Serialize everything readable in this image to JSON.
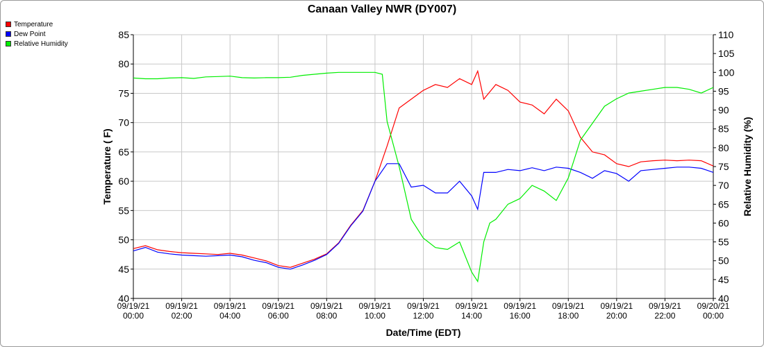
{
  "chart_data": {
    "type": "line",
    "title": "Canaan Valley NWR (DY007)",
    "xlabel": "Date/Time (EDT)",
    "ylabel": "Temperature ( F)",
    "y2label": "Relative Humidity (%)",
    "ylim": [
      40,
      85
    ],
    "y2lim": [
      40,
      110
    ],
    "xlim_hours": [
      0,
      24
    ],
    "yticks": [
      40,
      45,
      50,
      55,
      60,
      65,
      70,
      75,
      80,
      85
    ],
    "y2ticks": [
      40,
      45,
      50,
      55,
      60,
      65,
      70,
      75,
      80,
      85,
      90,
      95,
      100,
      105,
      110
    ],
    "xticks": [
      {
        "h": 0,
        "date": "09/19/21",
        "time": "00:00"
      },
      {
        "h": 2,
        "date": "09/19/21",
        "time": "02:00"
      },
      {
        "h": 4,
        "date": "09/19/21",
        "time": "04:00"
      },
      {
        "h": 6,
        "date": "09/19/21",
        "time": "06:00"
      },
      {
        "h": 8,
        "date": "09/19/21",
        "time": "08:00"
      },
      {
        "h": 10,
        "date": "09/19/21",
        "time": "10:00"
      },
      {
        "h": 12,
        "date": "09/19/21",
        "time": "12:00"
      },
      {
        "h": 14,
        "date": "09/19/21",
        "time": "14:00"
      },
      {
        "h": 16,
        "date": "09/19/21",
        "time": "16:00"
      },
      {
        "h": 18,
        "date": "09/19/21",
        "time": "18:00"
      },
      {
        "h": 20,
        "date": "09/19/21",
        "time": "20:00"
      },
      {
        "h": 22,
        "date": "09/19/21",
        "time": "22:00"
      },
      {
        "h": 24,
        "date": "09/20/21",
        "time": "00:00"
      }
    ],
    "grid": true,
    "legend_position": "top-left",
    "series": [
      {
        "name": "Temperature",
        "axis": "left",
        "color": "#ff0000",
        "x": [
          0,
          0.5,
          1,
          1.5,
          2,
          2.5,
          3,
          3.5,
          4,
          4.5,
          5,
          5.5,
          6,
          6.5,
          7,
          7.5,
          8,
          8.5,
          9,
          9.5,
          10,
          10.5,
          11,
          11.5,
          12,
          12.5,
          13,
          13.5,
          14,
          14.25,
          14.5,
          15,
          15.5,
          16,
          16.5,
          17,
          17.5,
          18,
          18.5,
          19,
          19.5,
          20,
          20.5,
          21,
          21.5,
          22,
          22.5,
          23,
          23.5,
          24
        ],
        "y": [
          48.5,
          49,
          48.3,
          48,
          47.8,
          47.7,
          47.6,
          47.5,
          47.7,
          47.4,
          46.9,
          46.4,
          45.6,
          45.3,
          46,
          46.7,
          47.6,
          49.5,
          52.5,
          55,
          60,
          66,
          72.5,
          74,
          75.5,
          76.5,
          76,
          77.5,
          76.5,
          78.8,
          74,
          76.5,
          75.5,
          73.5,
          73,
          71.5,
          74,
          72,
          67.5,
          65,
          64.5,
          63,
          62.5,
          63.3,
          63.5,
          63.6,
          63.5,
          63.6,
          63.5,
          62.6
        ]
      },
      {
        "name": "Dew Point",
        "axis": "left",
        "color": "#0000ff",
        "x": [
          0,
          0.5,
          1,
          1.5,
          2,
          2.5,
          3,
          3.5,
          4,
          4.5,
          5,
          5.5,
          6,
          6.5,
          7,
          7.5,
          8,
          8.5,
          9,
          9.5,
          10,
          10.5,
          11,
          11.5,
          12,
          12.5,
          13,
          13.5,
          14,
          14.25,
          14.5,
          15,
          15.5,
          16,
          16.5,
          17,
          17.5,
          18,
          18.5,
          19,
          19.5,
          20,
          20.5,
          21,
          21.5,
          22,
          22.5,
          23,
          23.5,
          24
        ],
        "y": [
          48.1,
          48.7,
          47.9,
          47.6,
          47.4,
          47.3,
          47.2,
          47.3,
          47.4,
          47.1,
          46.5,
          46.1,
          45.3,
          45,
          45.7,
          46.5,
          47.5,
          49.4,
          52.4,
          54.9,
          60,
          63,
          63,
          59,
          59.3,
          58,
          58,
          60,
          57.5,
          55.2,
          61.5,
          61.5,
          62,
          61.8,
          62.3,
          61.8,
          62.4,
          62.2,
          61.5,
          60.5,
          61.8,
          61.3,
          60,
          61.8,
          62,
          62.2,
          62.4,
          62.4,
          62.2,
          61.5
        ]
      },
      {
        "name": "Relative Humidity",
        "axis": "right",
        "color": "#00ee00",
        "x": [
          0,
          0.5,
          1,
          1.5,
          2,
          2.5,
          3,
          3.5,
          4,
          4.5,
          5,
          5.5,
          6,
          6.5,
          7,
          7.5,
          8,
          8.5,
          9,
          9.5,
          10,
          10.3,
          10.5,
          11,
          11.5,
          12,
          12.5,
          13,
          13.5,
          14,
          14.25,
          14.5,
          14.75,
          15,
          15.5,
          16,
          16.5,
          17,
          17.5,
          18,
          18.5,
          19,
          19.5,
          20,
          20.5,
          21,
          21.5,
          22,
          22.5,
          23,
          23.5,
          24
        ],
        "y": [
          98.5,
          98.3,
          98.3,
          98.5,
          98.6,
          98.4,
          98.8,
          98.9,
          99,
          98.6,
          98.5,
          98.6,
          98.6,
          98.7,
          99.2,
          99.5,
          99.8,
          100,
          100,
          100,
          100,
          99.5,
          87,
          75,
          61,
          56,
          53.5,
          53,
          55,
          47,
          44.5,
          55,
          60,
          61,
          65,
          66.5,
          70,
          68.5,
          66,
          72,
          82,
          86.5,
          91,
          93,
          94.5,
          95,
          95.5,
          96,
          96,
          95.5,
          94.5,
          96
        ]
      }
    ]
  }
}
